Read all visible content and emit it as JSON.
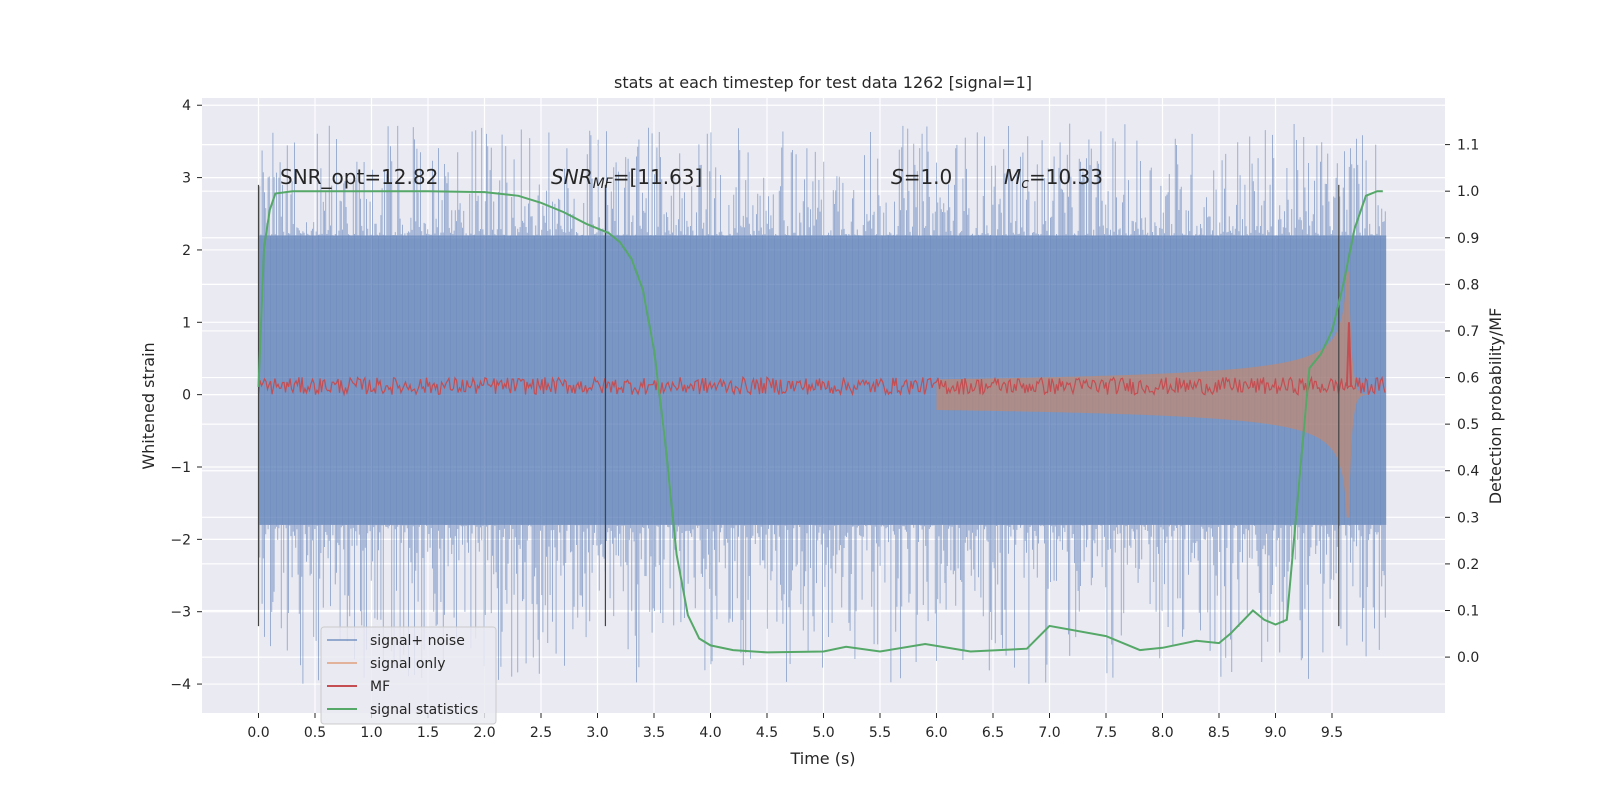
{
  "chart_data": {
    "type": "line",
    "title": "stats at each timestep for test data 1262 [signal=1]",
    "xlabel": "Time (s)",
    "ylabel": "Whitened strain",
    "y2label": "Detection probability/MF",
    "xlim": [
      -0.5,
      10.5
    ],
    "ylim": [
      -4.4,
      4.1
    ],
    "y2lim": [
      -0.12,
      1.2
    ],
    "x_ticks": [
      "0.0",
      "0.5",
      "1.0",
      "1.5",
      "2.0",
      "2.5",
      "3.0",
      "3.5",
      "4.0",
      "4.5",
      "5.0",
      "5.5",
      "6.0",
      "6.5",
      "7.0",
      "7.5",
      "8.0",
      "8.5",
      "9.0",
      "9.5"
    ],
    "y_ticks": [
      "4",
      "3",
      "2",
      "1",
      "0",
      "−1",
      "−2",
      "−3",
      "−4"
    ],
    "y2_ticks": [
      "1.1",
      "1.0",
      "0.9",
      "0.8",
      "0.7",
      "0.6",
      "0.5",
      "0.4",
      "0.3",
      "0.2",
      "0.1",
      "0.0"
    ],
    "grid": true,
    "legend_position": "lower-left",
    "annotations": {
      "snr_opt": "SNR_opt=12.82",
      "snr_mf_main": "SNR",
      "snr_mf_sub": "MF",
      "snr_mf_rest": "=[11.63]",
      "s_sym": "S",
      "s_rest": "=1.0",
      "mc_sym": "M",
      "mc_sub": "c",
      "mc_rest": "=10.33"
    },
    "vertical_markers_x": [
      0.0,
      3.07,
      9.56
    ],
    "series": [
      {
        "name": "signal+ noise",
        "color": "#4c72b0",
        "envelope": true,
        "x": [
          0.0,
          9.98
        ],
        "core_band": [
          -1.8,
          2.2
        ],
        "spike_range": [
          -4.0,
          3.75
        ]
      },
      {
        "name": "signal only",
        "color": "#dd8452",
        "chirp": true,
        "x_start": 6.0,
        "x_merger": 9.65,
        "x_end": 9.98,
        "peak_amplitude": 1.7
      },
      {
        "name": "MF",
        "color": "#c44e52",
        "baseline": 0.12,
        "noise_amplitude": 0.12,
        "peak_x": 9.65,
        "peak_value": 1.0,
        "x": [
          0.0,
          9.98
        ]
      },
      {
        "name": "signal statistics",
        "color": "#55a868",
        "axis": "right",
        "x": [
          0.0,
          0.05,
          0.1,
          0.15,
          0.3,
          0.6,
          1.0,
          1.5,
          2.0,
          2.3,
          2.5,
          2.7,
          2.9,
          3.1,
          3.2,
          3.3,
          3.4,
          3.5,
          3.6,
          3.7,
          3.8,
          3.9,
          4.0,
          4.2,
          4.5,
          5.0,
          5.2,
          5.5,
          5.9,
          6.3,
          6.8,
          7.0,
          7.5,
          7.8,
          8.0,
          8.3,
          8.5,
          8.6,
          8.8,
          8.9,
          9.0,
          9.1,
          9.2,
          9.3,
          9.4,
          9.5,
          9.6,
          9.7,
          9.8,
          9.9,
          9.95
        ],
        "y": [
          0.58,
          0.88,
          0.96,
          0.995,
          1.0,
          1.0,
          1.0,
          1.0,
          0.998,
          0.99,
          0.975,
          0.955,
          0.93,
          0.91,
          0.89,
          0.855,
          0.79,
          0.66,
          0.46,
          0.22,
          0.09,
          0.04,
          0.025,
          0.015,
          0.01,
          0.012,
          0.022,
          0.012,
          0.028,
          0.012,
          0.018,
          0.067,
          0.045,
          0.015,
          0.02,
          0.035,
          0.03,
          0.05,
          0.1,
          0.08,
          0.07,
          0.08,
          0.35,
          0.62,
          0.65,
          0.7,
          0.8,
          0.92,
          0.99,
          1.0,
          1.0
        ]
      }
    ]
  }
}
